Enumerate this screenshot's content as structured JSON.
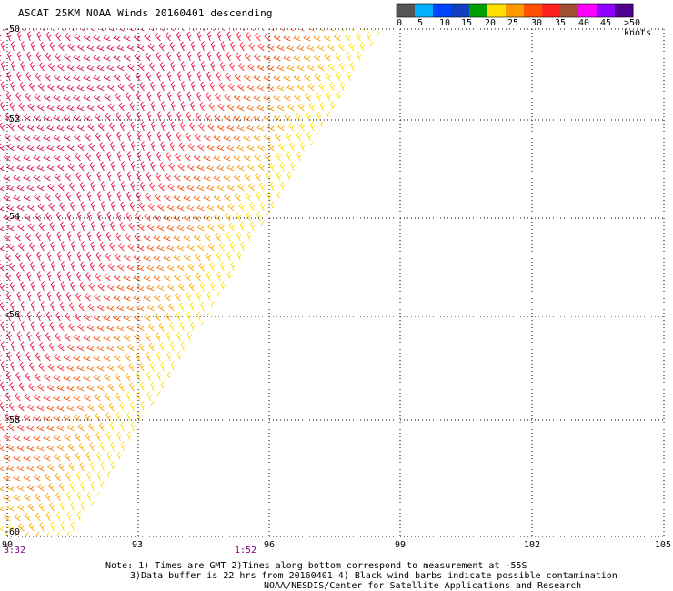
{
  "title": "ASCAT 25KM NOAA Winds 20160401 descending",
  "color_scale": {
    "colors": [
      "#555555",
      "#00b0ff",
      "#0044ff",
      "#1040c0",
      "#00a000",
      "#ffe000",
      "#ff9900",
      "#ff5000",
      "#ff2020",
      "#a05030",
      "#ff00ff",
      "#9000ff",
      "#500090"
    ],
    "tick_labels": [
      "0",
      "5",
      "10",
      "15",
      "20",
      "25",
      "30",
      "35",
      "40",
      "45",
      ">50 knots"
    ]
  },
  "axes": {
    "x_ticks": [
      "90",
      "93",
      "96",
      "99",
      "102",
      "105"
    ],
    "y_ticks": [
      "-50",
      "-52",
      "-54",
      "-56",
      "-58",
      "-60"
    ]
  },
  "times": [
    "3:32",
    "1:52"
  ],
  "notes": [
    "Note: 1) Times are GMT 2)Times along bottom correspond to measurement at -55S",
    "3)Data buffer is 22 hrs from 20160401 4) Black wind barbs indicate possible contamination",
    "NOAA/NESDIS/Center for Satellite Applications and Research"
  ]
}
